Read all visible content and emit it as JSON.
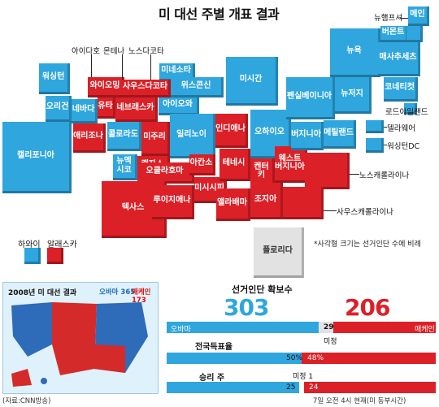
{
  "title": "미 대선 주별 개표 결과",
  "colors": {
    "obama": "#2fa6de",
    "mccain": "#dc2027",
    "undecided": "#e2e2e2"
  },
  "states": {
    "washington": "워싱턴",
    "oregon": "오리건",
    "california": "캘리포니아",
    "idaho": "아이다호",
    "montana": "몬테나",
    "northdakota": "노스다코타",
    "wyoming": "와이오밍",
    "minnesota": "미네소타",
    "southdakota": "사우스다코타",
    "wisconsin": "위스콘신",
    "nevada": "네바다",
    "utah": "유타",
    "iowa": "아이오와",
    "nebraska": "네브래스카",
    "michigan": "미시간",
    "arizona": "애리조나",
    "colorado": "콜로라도",
    "missouri": "미주리",
    "illinois": "일리노이",
    "indiana": "인디애나",
    "ohio": "오하이오",
    "pennsylvania": "펜실베이니아",
    "newyork": "뉴욕",
    "vermont": "버몬트",
    "newhampshire": "뉴햄프셔",
    "maine": "메인",
    "massachusetts": "매사추세츠",
    "connecticut": "코네티컷",
    "newjersey": "뉴저지",
    "virginia": "버지니아",
    "maryland": "메릴랜드",
    "newmexico": "뉴멕시코",
    "kansas": "캔자스",
    "oklahoma": "오클라호마",
    "arkansas": "아칸소",
    "kentucky": "켄터키",
    "tennessee": "테네시",
    "westvirginia": "웨스트\n버지니아",
    "northcarolina": "노스캐롤라이나",
    "texas": "텍사스",
    "louisiana": "루이지애나",
    "mississippi": "미시시피",
    "alabama": "앨라배마",
    "georgia": "조지아",
    "southcarolina": "사우스캐롤라이나",
    "florida": "플로리다",
    "hawaii": "하와이",
    "alaska": "알래스카",
    "rhodeisland": "로드아일랜드",
    "delaware": "델라웨어",
    "dc": "워싱턴DC"
  },
  "note": "*사각형 크기는 선거인단 수에 비례",
  "inset": {
    "title": "2008년 미 대선 결과",
    "obama": "오바마 365",
    "mccain": "매케인 173"
  },
  "results": {
    "title": "선거인단 확보수",
    "obama_votes": "303",
    "mccain_votes": "206",
    "undecided": "29",
    "obama_label": "오바마",
    "mccain_label": "매케인",
    "undecided_label": "미정",
    "popular_title": "전국득표율",
    "popular_obama": "50%",
    "popular_mccain": "48%",
    "states_title": "승리 주",
    "states_obama": "25",
    "states_mccain": "24",
    "states_undecided": "미정 1"
  },
  "electoral_fraction": {
    "obama": 0.564,
    "undecided": 0.054,
    "mccain": 0.382
  },
  "footer": {
    "source": "(자료:CNN방송)",
    "time": "7일 오전 4시 현재(미 동부시간)"
  }
}
